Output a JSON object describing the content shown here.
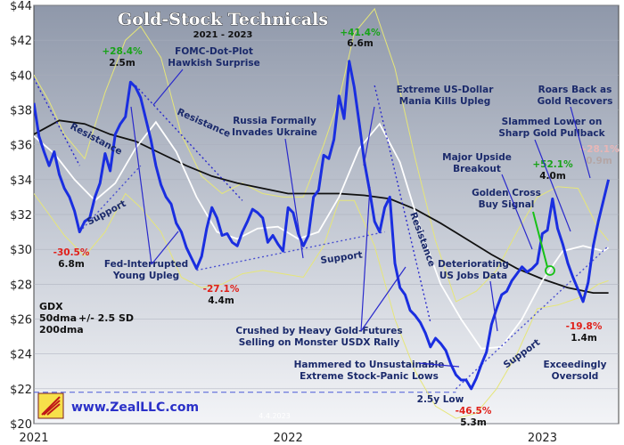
{
  "chart_data": {
    "type": "line",
    "title": "Gold-Stock Technicals",
    "subtitle": "2021 - 2023",
    "date_stamp": "4.4.2023",
    "website": "www.ZealLLC.com",
    "ylim": [
      20,
      44
    ],
    "yticks": [
      "$20",
      "$22",
      "$24",
      "$26",
      "$28",
      "$30",
      "$32",
      "$34",
      "$36",
      "$38",
      "$40",
      "$42",
      "$44"
    ],
    "ytick_values": [
      20,
      22,
      24,
      26,
      28,
      30,
      32,
      34,
      36,
      38,
      40,
      42,
      44
    ],
    "xlim": [
      2021.0,
      2023.3
    ],
    "xticks": [
      "2021",
      "2022",
      "2023"
    ],
    "xtick_values": [
      2021.0,
      2022.0,
      2023.0
    ],
    "legend": {
      "ticker": "GDX",
      "sma50": "50dma",
      "band": "+/- 2.5 SD",
      "sma200": "200dma"
    },
    "colors": {
      "price": "#1a2ee0",
      "sma50": "#ffffff",
      "sma200": "#111111",
      "band": "#e6e678",
      "bg_top": "#8f98aa",
      "bg_bottom": "#f2f3f6",
      "trend": "#2a2acc",
      "support_line": "#6e74d8"
    },
    "series": [
      {
        "name": "GDX",
        "x": [
          2021.0,
          2021.02,
          2021.04,
          2021.06,
          2021.08,
          2021.1,
          2021.12,
          2021.14,
          2021.16,
          2021.18,
          2021.2,
          2021.22,
          2021.24,
          2021.26,
          2021.28,
          2021.3,
          2021.32,
          2021.34,
          2021.36,
          2021.38,
          2021.4,
          2021.42,
          2021.44,
          2021.46,
          2021.48,
          2021.5,
          2021.52,
          2021.54,
          2021.56,
          2021.58,
          2021.6,
          2021.62,
          2021.64,
          2021.66,
          2021.68,
          2021.7,
          2021.72,
          2021.74,
          2021.76,
          2021.78,
          2021.8,
          2021.82,
          2021.84,
          2021.86,
          2021.88,
          2021.9,
          2021.92,
          2021.94,
          2021.96,
          2021.98,
          2022.0,
          2022.02,
          2022.04,
          2022.06,
          2022.08,
          2022.1,
          2022.12,
          2022.14,
          2022.16,
          2022.18,
          2022.2,
          2022.22,
          2022.24,
          2022.26,
          2022.28,
          2022.3,
          2022.32,
          2022.34,
          2022.36,
          2022.38,
          2022.4,
          2022.42,
          2022.44,
          2022.46,
          2022.48,
          2022.5,
          2022.52,
          2022.54,
          2022.56,
          2022.58,
          2022.6,
          2022.62,
          2022.64,
          2022.66,
          2022.68,
          2022.7,
          2022.72,
          2022.74,
          2022.76,
          2022.78,
          2022.8,
          2022.82,
          2022.84,
          2022.86,
          2022.88,
          2022.9,
          2022.92,
          2022.94,
          2022.96,
          2022.98,
          2023.0,
          2023.02,
          2023.04,
          2023.06,
          2023.08,
          2023.1,
          2023.12,
          2023.14,
          2023.16,
          2023.18,
          2023.2,
          2023.22,
          2023.24,
          2023.26
        ],
        "values": [
          38.4,
          36.5,
          35.6,
          34.8,
          35.6,
          34.3,
          33.5,
          33.0,
          32.2,
          31.0,
          31.6,
          31.8,
          33.0,
          33.8,
          35.5,
          34.5,
          36.6,
          37.2,
          37.6,
          39.6,
          39.3,
          38.7,
          37.5,
          36.3,
          34.8,
          33.7,
          33.0,
          32.6,
          31.5,
          31.0,
          30.1,
          29.5,
          28.9,
          29.6,
          31.2,
          32.4,
          31.8,
          30.8,
          30.9,
          30.4,
          30.2,
          31.0,
          31.6,
          32.3,
          32.1,
          31.8,
          30.4,
          30.8,
          30.3,
          29.9,
          32.4,
          32.1,
          30.9,
          30.2,
          30.8,
          33.0,
          33.4,
          35.4,
          35.2,
          36.3,
          38.8,
          37.5,
          40.8,
          39.3,
          37.2,
          35.0,
          33.4,
          31.6,
          31.0,
          32.4,
          33.0,
          29.2,
          27.8,
          27.4,
          26.5,
          26.2,
          25.8,
          25.2,
          24.4,
          24.9,
          24.6,
          24.2,
          23.4,
          22.8,
          22.5,
          22.5,
          22.0,
          22.6,
          23.4,
          24.1,
          25.7,
          26.6,
          27.4,
          27.6,
          28.2,
          28.6,
          29.0,
          28.7,
          28.9,
          29.2,
          30.9,
          31.1,
          32.9,
          31.2,
          30.3,
          29.2,
          28.4,
          27.7,
          27.0,
          28.1,
          30.2,
          31.6,
          32.8,
          34.0
        ]
      },
      {
        "name": "50dma",
        "x": [
          2021.0,
          2021.08,
          2021.16,
          2021.24,
          2021.32,
          2021.4,
          2021.48,
          2021.56,
          2021.64,
          2021.72,
          2021.8,
          2021.88,
          2021.96,
          2022.04,
          2022.12,
          2022.2,
          2022.28,
          2022.36,
          2022.44,
          2022.52,
          2022.6,
          2022.68,
          2022.76,
          2022.84,
          2022.92,
          2023.0,
          2023.08,
          2023.16,
          2023.24,
          2023.26
        ],
        "values": [
          36.5,
          35.5,
          34.0,
          32.8,
          33.8,
          35.8,
          37.3,
          35.6,
          33.0,
          31.0,
          30.6,
          31.2,
          31.3,
          30.6,
          31.0,
          33.0,
          35.8,
          37.2,
          35.0,
          31.2,
          28.0,
          26.0,
          24.3,
          24.4,
          26.0,
          28.2,
          29.9,
          30.2,
          29.9,
          30.1
        ]
      },
      {
        "name": "200dma",
        "x": [
          2021.0,
          2021.1,
          2021.2,
          2021.3,
          2021.4,
          2021.5,
          2021.6,
          2021.7,
          2021.8,
          2021.9,
          2022.0,
          2022.1,
          2022.2,
          2022.3,
          2022.4,
          2022.5,
          2022.6,
          2022.7,
          2022.8,
          2022.9,
          2023.0,
          2023.1,
          2023.2,
          2023.26
        ],
        "values": [
          36.6,
          37.4,
          37.2,
          36.6,
          36.2,
          35.5,
          34.8,
          34.2,
          33.8,
          33.5,
          33.2,
          33.2,
          33.2,
          33.1,
          32.9,
          32.3,
          31.5,
          30.6,
          29.7,
          28.9,
          28.3,
          27.8,
          27.5,
          27.5
        ]
      },
      {
        "name": "upper-band",
        "x": [
          2021.0,
          2021.06,
          2021.12,
          2021.2,
          2021.28,
          2021.36,
          2021.42,
          2021.5,
          2021.58,
          2021.66,
          2021.74,
          2021.82,
          2021.9,
          2021.98,
          2022.06,
          2022.14,
          2022.2,
          2022.26,
          2022.34,
          2022.42,
          2022.5,
          2022.58,
          2022.66,
          2022.74,
          2022.82,
          2022.9,
          2022.98,
          2023.06,
          2023.14,
          2023.22,
          2023.26
        ],
        "values": [
          40.0,
          38.5,
          36.6,
          35.2,
          39.0,
          42.0,
          42.8,
          41.0,
          36.6,
          34.2,
          33.2,
          33.8,
          33.2,
          33.0,
          33.0,
          36.0,
          38.6,
          42.4,
          43.8,
          40.4,
          35.2,
          30.5,
          27.0,
          27.6,
          28.8,
          31.0,
          33.0,
          33.6,
          33.5,
          31.2,
          30.5
        ]
      },
      {
        "name": "lower-band",
        "x": [
          2021.0,
          2021.06,
          2021.12,
          2021.2,
          2021.28,
          2021.36,
          2021.42,
          2021.5,
          2021.58,
          2021.66,
          2021.74,
          2021.82,
          2021.9,
          2021.98,
          2022.06,
          2022.14,
          2022.2,
          2022.26,
          2022.34,
          2022.42,
          2022.5,
          2022.58,
          2022.66,
          2022.74,
          2022.82,
          2022.9,
          2022.98,
          2023.06,
          2023.14,
          2023.22,
          2023.26
        ],
        "values": [
          33.2,
          32.0,
          30.8,
          29.6,
          31.0,
          33.2,
          32.4,
          31.0,
          28.4,
          27.8,
          28.0,
          28.6,
          28.8,
          28.6,
          28.4,
          30.2,
          32.8,
          32.8,
          30.2,
          26.0,
          23.0,
          21.0,
          20.3,
          20.6,
          22.0,
          24.0,
          26.6,
          26.8,
          27.2,
          28.0,
          28.2
        ]
      }
    ],
    "trendlines": [
      {
        "label": "Resistance",
        "from": [
          2021.0,
          39.8
        ],
        "to": [
          2021.18,
          34.8
        ]
      },
      {
        "label": "Resistance",
        "from": [
          2021.4,
          39.4
        ],
        "to": [
          2021.82,
          32.8
        ]
      },
      {
        "label": "Resistance",
        "from": [
          2022.34,
          39.4
        ],
        "to": [
          2022.56,
          25.8
        ]
      },
      {
        "label": "Support",
        "from": [
          2021.18,
          31.0
        ],
        "to": [
          2021.42,
          34.8
        ]
      },
      {
        "label": "Support",
        "from": [
          2021.64,
          28.8
        ],
        "to": [
          2022.38,
          31.0
        ]
      },
      {
        "label": "Support",
        "from": [
          2022.66,
          22.0
        ],
        "to": [
          2023.26,
          30.2
        ]
      }
    ],
    "reference_line": {
      "value": 21.8,
      "from": 2021.0,
      "to": 2022.66
    },
    "annotations": {
      "peak_2021": {
        "pct": "+28.4%",
        "vol": "2.5m"
      },
      "peak_2022": {
        "pct": "+41.4%",
        "vol": "6.6m"
      },
      "peak_2023": {
        "pct": "+52.1%",
        "vol": "4.0m"
      },
      "recent": {
        "pct": "+28.1%",
        "vol": "0.9m"
      },
      "low_2021a": {
        "pct": "-30.5%",
        "vol": "6.8m"
      },
      "low_2021b": {
        "pct": "-27.1%",
        "vol": "4.4m"
      },
      "low_2022": {
        "pct": "-46.5%",
        "vol": "5.3m"
      },
      "low_2023": {
        "pct": "-19.8%",
        "vol": "1.4m"
      },
      "fomc_line1": "FOMC-Dot-Plot",
      "fomc_line2": "Hawkish Surprise",
      "russia_line1": "Russia Formally",
      "russia_line2": "Invades Ukraine",
      "usd_line1": "Extreme US-Dollar",
      "usd_line2": "Mania Kills Upleg",
      "roars_line1": "Roars Back as",
      "roars_line2": "Gold Recovers",
      "slammed_line1": "Slammed Lower on",
      "slammed_line2": "Sharp Gold Pullback",
      "breakout_line1": "Major Upside",
      "breakout_line2": "Breakout",
      "golden_line1": "Golden Cross",
      "golden_line2": "Buy Signal",
      "fed_line1": "Fed-Interrupted",
      "fed_line2": "Young Upleg",
      "deteriorating_line1": "Deteriorating",
      "deteriorating_line2": "US Jobs Data",
      "crushed_line1": "Crushed by Heavy Gold-Futures",
      "crushed_line2": "Selling on Monster USDX Rally",
      "hammered_line1": "Hammered to Unsustainable",
      "hammered_line2": "Extreme Stock-Panic Lows",
      "low_label": "2.5y Low",
      "oversold_line1": "Exceedingly",
      "oversold_line2": "Oversold"
    }
  }
}
